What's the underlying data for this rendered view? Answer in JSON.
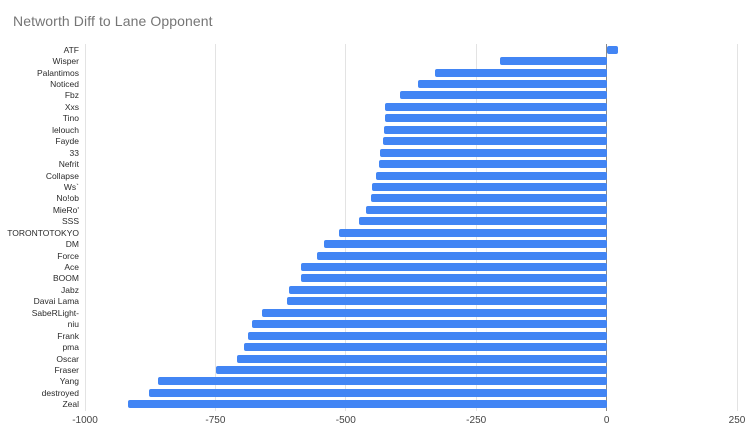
{
  "chart_data": {
    "type": "bar",
    "orientation": "horizontal",
    "title": "Networth Diff to Lane Opponent",
    "categories": [
      "ATF",
      "Wisper",
      "Palantimos",
      "Noticed",
      "Fbz",
      "Xxs",
      "Tino",
      "lelouch",
      "Fayde",
      "33",
      "Nefrit",
      "Collapse",
      "Ws`",
      "No!ob",
      "MieRo'",
      "SSS",
      "TORONTOTOKYO",
      "DM",
      "Force",
      "Ace",
      "BOOM",
      "Jabz",
      "Davai Lama",
      "SabeRLight-",
      "niu",
      "Frank",
      "pma",
      "Oscar",
      "Fraser",
      "Yang",
      "destroyed",
      "Zeal"
    ],
    "values": [
      21,
      -204,
      -329,
      -361,
      -397,
      -424,
      -425,
      -426,
      -428,
      -434,
      -436,
      -443,
      -450,
      -452,
      -461,
      -475,
      -513,
      -541,
      -556,
      -585,
      -586,
      -608,
      -612,
      -660,
      -679,
      -687,
      -695,
      -709,
      -748,
      -860,
      -877,
      -917
    ],
    "xlabel": "",
    "ylabel": "",
    "xlim": [
      -1000,
      250
    ],
    "x_ticks": [
      -1000,
      -750,
      -500,
      -250,
      0,
      250
    ],
    "grid": true,
    "legend_position": "none",
    "colors": {
      "bar": "#4285f4",
      "grid_line": "#e3e3e3",
      "zero_line": "#8a8a8a",
      "title_text": "#757575",
      "tick_text": "#444444",
      "category_text": "#2b2b2b",
      "background": "#ffffff"
    }
  }
}
